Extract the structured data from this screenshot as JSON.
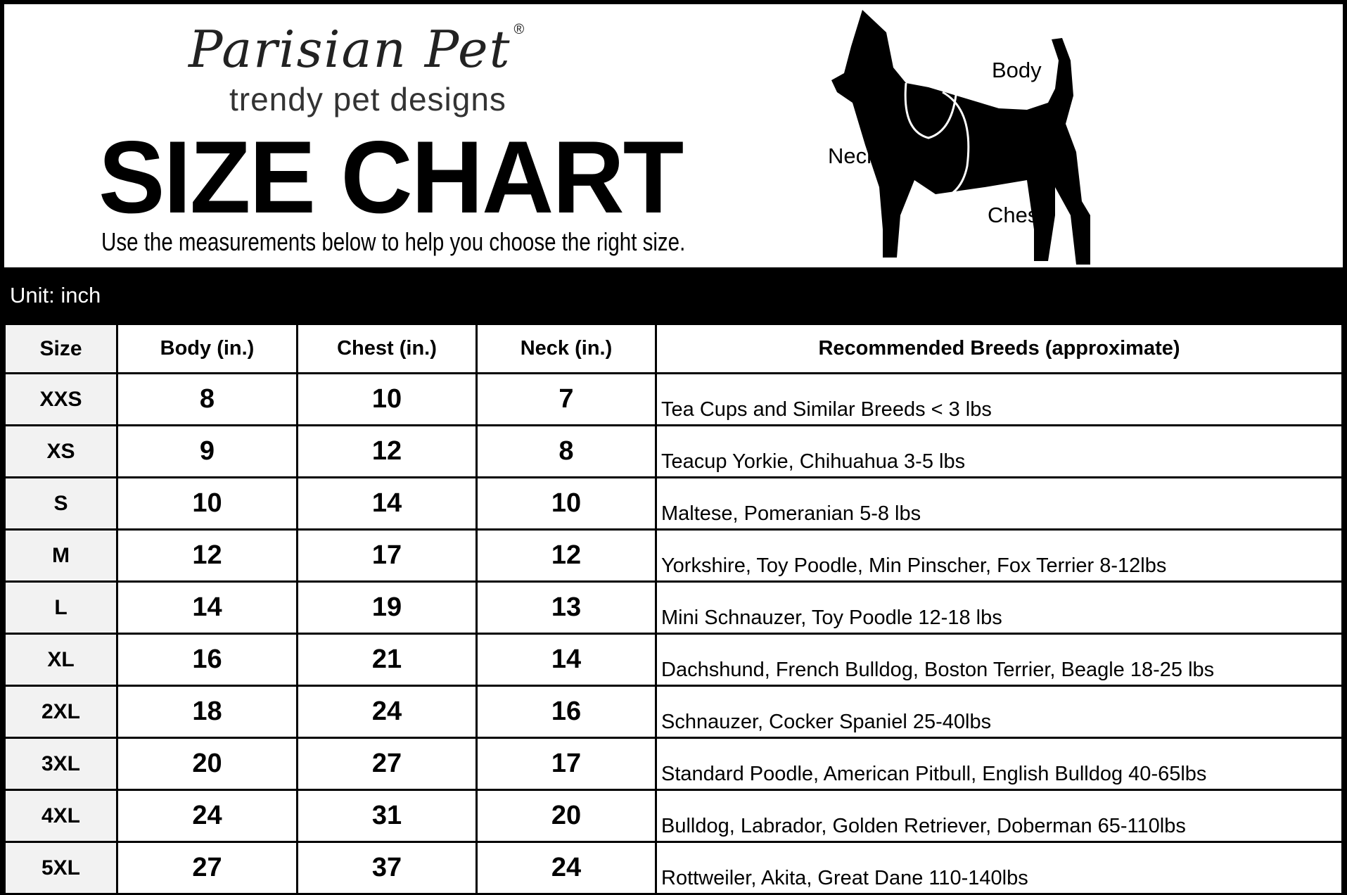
{
  "brand": {
    "name": "Parisian Pet",
    "registered": "®",
    "tagline": "trendy pet designs"
  },
  "title": "SIZE CHART",
  "subtitle": "Use the measurements below to help you choose the right size.",
  "diagram": {
    "labels": {
      "body": "Body",
      "neck": "Neck",
      "chest": "Chest"
    }
  },
  "unit": "Unit: inch",
  "table": {
    "headers": [
      "Size",
      "Body (in.)",
      "Chest (in.)",
      "Neck (in.)",
      "Recommended Breeds (approximate)"
    ],
    "rows": [
      [
        "XXS",
        "8",
        "10",
        "7",
        "Tea Cups and Similar Breeds < 3 lbs"
      ],
      [
        "XS",
        "9",
        "12",
        "8",
        "Teacup Yorkie, Chihuahua 3-5 lbs"
      ],
      [
        "S",
        "10",
        "14",
        "10",
        "Maltese, Pomeranian 5-8 lbs"
      ],
      [
        "M",
        "12",
        "17",
        "12",
        "Yorkshire, Toy Poodle, Min Pinscher, Fox Terrier 8-12lbs"
      ],
      [
        "L",
        "14",
        "19",
        "13",
        "Mini Schnauzer, Toy Poodle 12-18 lbs"
      ],
      [
        "XL",
        "16",
        "21",
        "14",
        "Dachshund, French Bulldog, Boston Terrier, Beagle 18-25 lbs"
      ],
      [
        "2XL",
        "18",
        "24",
        "16",
        "Schnauzer, Cocker Spaniel 25-40lbs"
      ],
      [
        "3XL",
        "20",
        "27",
        "17",
        "Standard Poodle, American Pitbull, English Bulldog 40-65lbs"
      ],
      [
        "4XL",
        "24",
        "31",
        "20",
        "Bulldog, Labrador, Golden Retriever, Doberman 65-110lbs"
      ],
      [
        "5XL",
        "27",
        "37",
        "24",
        "Rottweiler, Akita, Great Dane 110-140lbs"
      ]
    ]
  }
}
